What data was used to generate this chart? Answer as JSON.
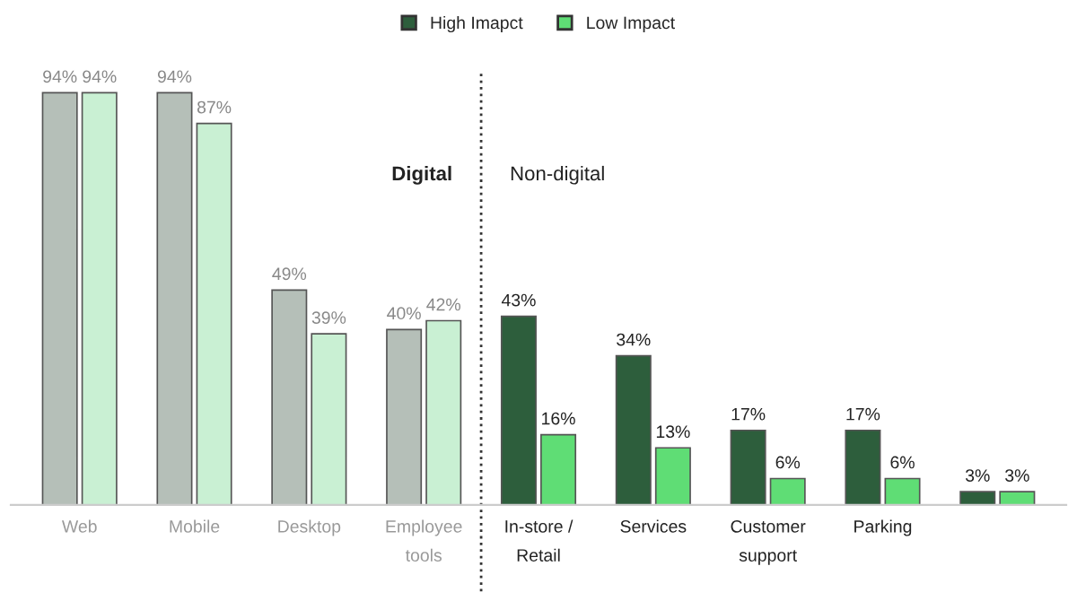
{
  "chart_data": {
    "type": "bar",
    "categories": [
      "Web",
      "Mobile",
      "Desktop",
      "Employee\ntools",
      "In-store /\nRetail",
      "Services",
      "Customer\nsupport",
      "Parking",
      null
    ],
    "series": [
      {
        "name": "High Imapct",
        "color": "#2d5e3c",
        "colors": [
          "#b5bfb8",
          "#b5bfb8",
          "#b5bfb8",
          "#b5bfb8",
          "#2d5e3c",
          "#2d5e3c",
          "#2d5e3c",
          "#2d5e3c",
          "#2d5e3c"
        ],
        "values": [
          94,
          94,
          49,
          40,
          43,
          34,
          17,
          17,
          3
        ],
        "value_labels": [
          "94%",
          "94%",
          "49%",
          "40%",
          "43%",
          "34%",
          "17%",
          "17%",
          "3%"
        ]
      },
      {
        "name": "Low Impact",
        "color": "#5fdd75",
        "colors": [
          "#c9f0d3",
          "#c9f0d3",
          "#c9f0d3",
          "#c9f0d3",
          "#5fdd75",
          "#5fdd75",
          "#5fdd75",
          "#5fdd75",
          "#5fdd75"
        ],
        "values": [
          94,
          87,
          39,
          42,
          16,
          13,
          6,
          6,
          3
        ],
        "value_labels": [
          "94%",
          "87%",
          "39%",
          "42%",
          "16%",
          "13%",
          "6%",
          "6%",
          "3%"
        ]
      }
    ],
    "annotations": [
      "Digital",
      "Non-digital"
    ],
    "legend": "top",
    "grid": false
  }
}
